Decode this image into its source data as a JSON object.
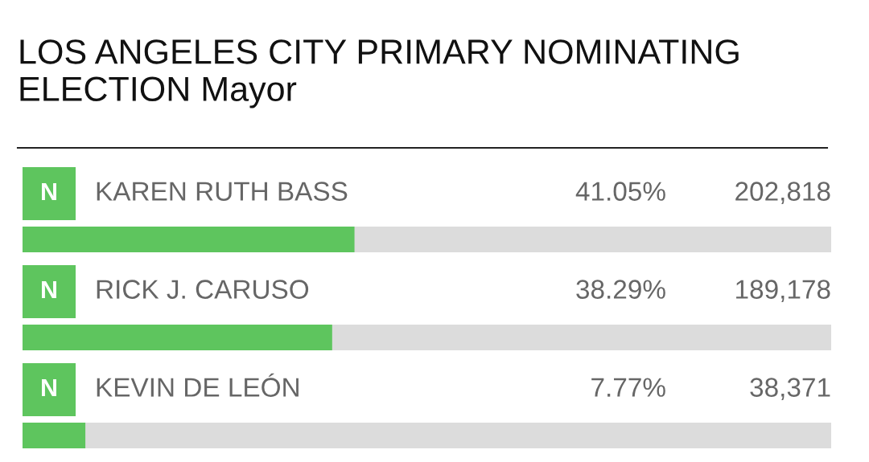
{
  "chart_data": {
    "type": "bar",
    "orientation": "horizontal",
    "title": "LOS ANGELES CITY PRIMARY NOMINATING ELECTION Mayor",
    "categories": [
      "KAREN RUTH BASS",
      "RICK J. CARUSO",
      "KEVIN DE LEÓN"
    ],
    "values": [
      41.05,
      38.29,
      7.77
    ],
    "value_labels": [
      "41.05%",
      "38.29%",
      "7.77%"
    ],
    "color": "#5ec55e",
    "xlim": [
      0,
      100
    ],
    "annotations": [
      "N",
      "202,818",
      "N",
      "189,178",
      "N",
      "38,371"
    ]
  }
}
